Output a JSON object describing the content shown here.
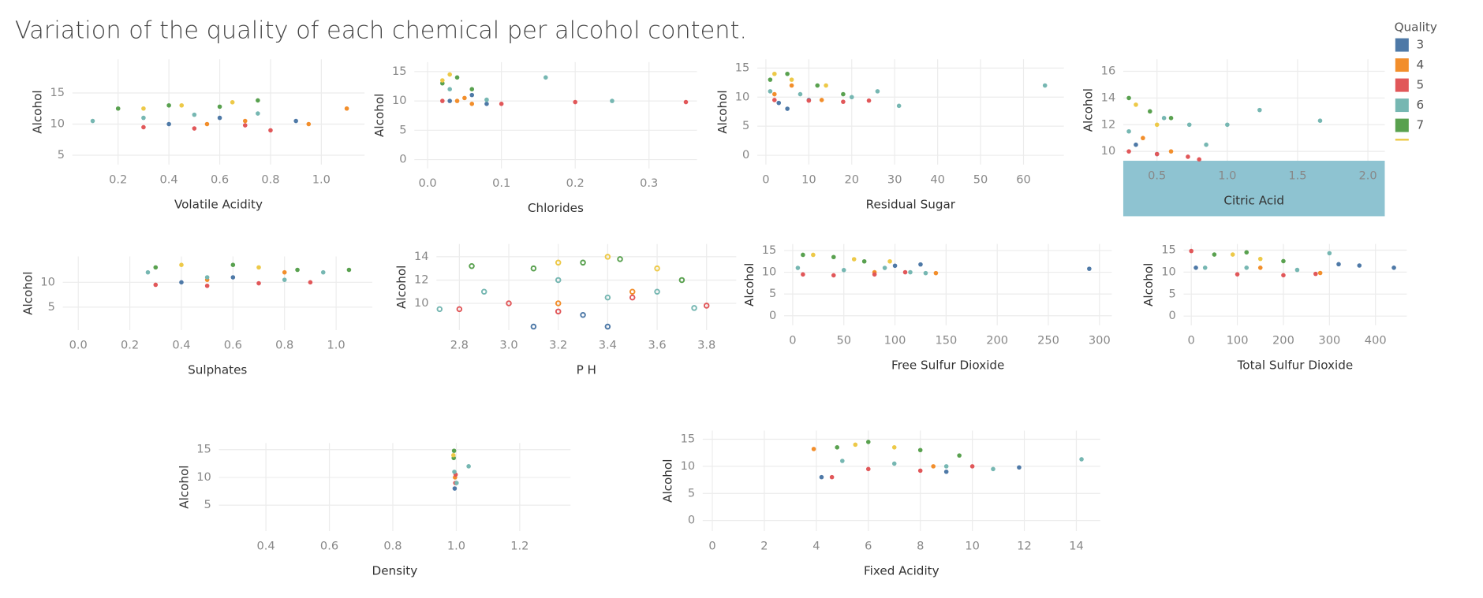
{
  "title": "Variation of the quality of each chemical per alcohol content.",
  "legend_title": "Quality",
  "chart_data": [
    {
      "type": "scatter",
      "x_label": "Volatile Acidity",
      "y_label": "Alcohol",
      "xlim": [
        0.02,
        1.17
      ],
      "ylim": [
        3.5,
        20.4
      ],
      "xticks": [
        0.2,
        0.4,
        0.6,
        0.8,
        {
          "value": 1.0,
          "label": "1.0"
        }
      ],
      "yticks": [
        5,
        10,
        15
      ],
      "series": [
        {
          "name": "3",
          "color": "#4e79a7",
          "x": [
            0.4,
            0.6,
            0.9
          ],
          "y": [
            10,
            11,
            10.5
          ]
        },
        {
          "name": "4",
          "color": "#f28e2b",
          "x": [
            0.55,
            0.7,
            0.95,
            1.1
          ],
          "y": [
            10,
            10.5,
            10,
            12.5
          ]
        },
        {
          "name": "5",
          "color": "#e15759",
          "x": [
            0.3,
            0.5,
            0.7,
            0.8
          ],
          "y": [
            9.5,
            9.3,
            9.8,
            9
          ]
        },
        {
          "name": "6",
          "color": "#76b7b2",
          "x": [
            0.1,
            0.3,
            0.5,
            0.75
          ],
          "y": [
            10.5,
            11,
            11.5,
            11.7
          ]
        },
        {
          "name": "7",
          "color": "#59a14f",
          "x": [
            0.2,
            0.4,
            0.6,
            0.75
          ],
          "y": [
            12.5,
            13,
            12.8,
            13.8
          ]
        },
        {
          "color": "#edc948",
          "x": [
            0.3,
            0.45,
            0.65
          ],
          "y": [
            12.5,
            13,
            13.5
          ]
        }
      ]
    },
    {
      "type": "scatter",
      "x_label": "Chlorides",
      "y_label": "Alcohol",
      "xlim": [
        -0.018,
        0.365
      ],
      "ylim": [
        -1.5,
        16.6
      ],
      "xticks": [
        {
          "value": 0.0,
          "label": "0.0"
        },
        0.1,
        0.2,
        0.3
      ],
      "yticks": [
        0,
        5,
        10,
        15
      ],
      "series": [
        {
          "name": "3",
          "color": "#4e79a7",
          "x": [
            0.03,
            0.06,
            0.08
          ],
          "y": [
            10,
            11,
            9.5
          ]
        },
        {
          "name": "4",
          "color": "#f28e2b",
          "x": [
            0.04,
            0.05,
            0.06
          ],
          "y": [
            10,
            10.5,
            9.5
          ]
        },
        {
          "name": "5",
          "color": "#e15759",
          "x": [
            0.02,
            0.1,
            0.2,
            0.35
          ],
          "y": [
            10,
            9.5,
            9.8,
            9.8
          ]
        },
        {
          "name": "6",
          "color": "#76b7b2",
          "x": [
            0.03,
            0.08,
            0.16,
            0.25
          ],
          "y": [
            12,
            10.2,
            14,
            10
          ]
        },
        {
          "name": "7",
          "color": "#59a14f",
          "x": [
            0.02,
            0.04,
            0.06
          ],
          "y": [
            13,
            14,
            12
          ]
        },
        {
          "color": "#edc948",
          "x": [
            0.02,
            0.03
          ],
          "y": [
            13.5,
            14.5
          ]
        }
      ]
    },
    {
      "type": "scatter",
      "x_label": "Residual Sugar",
      "y_label": "Alcohol",
      "xlim": [
        -2,
        69.4
      ],
      "ylim": [
        -1.6,
        16.5
      ],
      "xticks": [
        0,
        10,
        20,
        30,
        40,
        50,
        60
      ],
      "yticks": [
        0,
        5,
        10,
        15
      ],
      "series": [
        {
          "name": "3",
          "color": "#4e79a7",
          "x": [
            3,
            5,
            10
          ],
          "y": [
            9,
            8,
            9.5
          ]
        },
        {
          "name": "4",
          "color": "#f28e2b",
          "x": [
            2,
            6,
            13
          ],
          "y": [
            10.5,
            12,
            9.5
          ]
        },
        {
          "name": "5",
          "color": "#e15759",
          "x": [
            2,
            10,
            18,
            24
          ],
          "y": [
            9.5,
            9.4,
            9.2,
            9.4
          ]
        },
        {
          "name": "6",
          "color": "#76b7b2",
          "x": [
            1,
            8,
            20,
            26,
            31,
            65
          ],
          "y": [
            11,
            10.5,
            10,
            11,
            8.5,
            12
          ]
        },
        {
          "name": "7",
          "color": "#59a14f",
          "x": [
            1,
            5,
            12,
            18
          ],
          "y": [
            13,
            14,
            12,
            10.5
          ]
        },
        {
          "color": "#edc948",
          "x": [
            2,
            6,
            14
          ],
          "y": [
            14,
            13,
            12
          ]
        }
      ]
    },
    {
      "type": "scatter",
      "x_label": "Citric Acid",
      "y_label": "Alcohol",
      "xlim": [
        0.26,
        2.12
      ],
      "ylim": [
        9.3,
        16.9
      ],
      "xticks": [
        0.5,
        {
          "value": 1.0,
          "label": "1.0"
        },
        1.5,
        {
          "value": 2.0,
          "label": "2.0"
        }
      ],
      "yticks": [
        10,
        12,
        14,
        16
      ],
      "series": [
        {
          "name": "3",
          "color": "#4e79a7",
          "x": [
            0.35,
            0.5
          ],
          "y": [
            10.5,
            9.8
          ]
        },
        {
          "name": "4",
          "color": "#f28e2b",
          "x": [
            0.4,
            0.6
          ],
          "y": [
            11,
            10
          ]
        },
        {
          "name": "5",
          "color": "#e15759",
          "x": [
            0.3,
            0.5,
            0.72,
            0.8
          ],
          "y": [
            10,
            9.8,
            9.6,
            9.4
          ]
        },
        {
          "name": "6",
          "color": "#76b7b2",
          "x": [
            0.3,
            0.55,
            0.73,
            0.85,
            1.0,
            1.23,
            1.66
          ],
          "y": [
            11.5,
            12.5,
            12,
            10.5,
            12,
            13.1,
            12.3
          ]
        },
        {
          "name": "7",
          "color": "#59a14f",
          "x": [
            0.3,
            0.45,
            0.6
          ],
          "y": [
            14,
            13,
            12.5
          ]
        },
        {
          "color": "#edc948",
          "x": [
            0.35,
            0.5
          ],
          "y": [
            13.5,
            12
          ]
        }
      ]
    },
    {
      "type": "scatter",
      "x_label": "Sulphates",
      "y_label": "Alcohol",
      "xlim": [
        -0.06,
        1.14
      ],
      "ylim": [
        0.4,
        15.2
      ],
      "xticks": [
        {
          "value": 0.0,
          "label": "0.0"
        },
        0.2,
        0.4,
        0.6,
        0.8,
        {
          "value": 1.0,
          "label": "1.0"
        }
      ],
      "yticks": [
        5,
        10
      ],
      "series": [
        {
          "name": "3",
          "color": "#4e79a7",
          "x": [
            0.4,
            0.6
          ],
          "y": [
            10,
            11
          ]
        },
        {
          "name": "4",
          "color": "#f28e2b",
          "x": [
            0.5,
            0.8
          ],
          "y": [
            10.5,
            12
          ]
        },
        {
          "name": "5",
          "color": "#e15759",
          "x": [
            0.3,
            0.5,
            0.7,
            0.9
          ],
          "y": [
            9.5,
            9.3,
            9.8,
            10
          ]
        },
        {
          "name": "6",
          "color": "#76b7b2",
          "x": [
            0.27,
            0.5,
            0.8,
            0.95
          ],
          "y": [
            12,
            11,
            10.5,
            12
          ]
        },
        {
          "name": "7",
          "color": "#59a14f",
          "x": [
            0.3,
            0.6,
            0.85,
            1.05
          ],
          "y": [
            13,
            13.5,
            12.5,
            12.5
          ]
        },
        {
          "color": "#edc948",
          "x": [
            0.4,
            0.7
          ],
          "y": [
            13.5,
            13
          ]
        }
      ]
    },
    {
      "type": "scatter",
      "marker": "hollow",
      "x_label": "P H",
      "y_label": "Alcohol",
      "xlim": [
        2.707,
        3.92
      ],
      "ylim": [
        7.7,
        15.1
      ],
      "xticks": [
        2.8,
        {
          "value": 3.0,
          "label": "3.0"
        },
        3.2,
        3.4,
        3.6,
        3.8
      ],
      "yticks": [
        10,
        12,
        14
      ],
      "series": [
        {
          "name": "3",
          "color": "#4e79a7",
          "x": [
            3.1,
            3.3,
            3.4
          ],
          "y": [
            8,
            9,
            8
          ]
        },
        {
          "name": "4",
          "color": "#f28e2b",
          "x": [
            3.2,
            3.5
          ],
          "y": [
            10,
            11
          ]
        },
        {
          "name": "5",
          "color": "#e15759",
          "x": [
            2.8,
            3.0,
            3.2,
            3.5,
            3.8
          ],
          "y": [
            9.5,
            10,
            9.3,
            10.5,
            9.8
          ]
        },
        {
          "name": "6",
          "color": "#76b7b2",
          "x": [
            2.72,
            2.9,
            3.2,
            3.4,
            3.6,
            3.75
          ],
          "y": [
            9.5,
            11,
            12,
            10.5,
            11,
            9.6
          ]
        },
        {
          "name": "7",
          "color": "#59a14f",
          "x": [
            2.85,
            3.1,
            3.3,
            3.45,
            3.7
          ],
          "y": [
            13.2,
            13,
            13.5,
            13.8,
            12
          ]
        },
        {
          "color": "#edc948",
          "x": [
            3.2,
            3.4,
            3.6
          ],
          "y": [
            13.5,
            14,
            13
          ]
        }
      ]
    },
    {
      "type": "scatter",
      "x_label": "Free Sulfur Dioxide",
      "y_label": "Alcohol",
      "xlim": [
        -8.4,
        312
      ],
      "ylim": [
        -2.2,
        16.5
      ],
      "xticks": [
        0,
        50,
        100,
        150,
        200,
        250,
        300
      ],
      "yticks": [
        0,
        5,
        10,
        15
      ],
      "series": [
        {
          "name": "3",
          "color": "#4e79a7",
          "x": [
            100,
            125,
            290
          ],
          "y": [
            11.5,
            11.8,
            10.8
          ]
        },
        {
          "name": "4",
          "color": "#f28e2b",
          "x": [
            80,
            140
          ],
          "y": [
            10,
            9.8
          ]
        },
        {
          "name": "5",
          "color": "#e15759",
          "x": [
            10,
            40,
            80,
            110
          ],
          "y": [
            9.5,
            9.3,
            9.5,
            10
          ]
        },
        {
          "name": "6",
          "color": "#76b7b2",
          "x": [
            5,
            50,
            90,
            115,
            130
          ],
          "y": [
            11,
            10.5,
            11,
            10,
            9.8
          ]
        },
        {
          "name": "7",
          "color": "#59a14f",
          "x": [
            10,
            40,
            70
          ],
          "y": [
            14,
            13.5,
            12.5
          ]
        },
        {
          "color": "#edc948",
          "x": [
            20,
            60,
            95
          ],
          "y": [
            14,
            13,
            12.5
          ]
        }
      ]
    },
    {
      "type": "scatter",
      "x_label": "Total Sulfur Dioxide",
      "y_label": "Alcohol",
      "xlim": [
        -16.7,
        468
      ],
      "ylim": [
        -2.1,
        16.4
      ],
      "xticks": [
        0,
        100,
        200,
        300,
        400
      ],
      "yticks": [
        0,
        5,
        10,
        15
      ],
      "series": [
        {
          "name": "3",
          "color": "#4e79a7",
          "x": [
            10,
            320,
            365,
            440
          ],
          "y": [
            11,
            11.8,
            11.5,
            11
          ]
        },
        {
          "name": "4",
          "color": "#f28e2b",
          "x": [
            150,
            280
          ],
          "y": [
            11,
            9.8
          ]
        },
        {
          "name": "5",
          "color": "#e15759",
          "x": [
            0,
            100,
            200,
            270
          ],
          "y": [
            14.8,
            9.5,
            9.3,
            9.6
          ]
        },
        {
          "name": "6",
          "color": "#76b7b2",
          "x": [
            30,
            120,
            230,
            300
          ],
          "y": [
            11,
            11,
            10.5,
            14.3
          ]
        },
        {
          "name": "7",
          "color": "#59a14f",
          "x": [
            50,
            120,
            200
          ],
          "y": [
            14,
            14.5,
            12.5
          ]
        },
        {
          "color": "#edc948",
          "x": [
            90,
            150
          ],
          "y": [
            14,
            13
          ]
        }
      ]
    },
    {
      "type": "scatter",
      "x_label": "Density",
      "y_label": "Alcohol",
      "xlim": [
        0.252,
        1.36
      ],
      "ylim": [
        0.34,
        16.2
      ],
      "xticks": [
        0.4,
        0.6,
        0.8,
        {
          "value": 1.0,
          "label": "1.0"
        },
        1.2
      ],
      "yticks": [
        5,
        10,
        15
      ],
      "series": [
        {
          "name": "3",
          "color": "#4e79a7",
          "x": [
            0.995
          ],
          "y": [
            8
          ]
        },
        {
          "name": "4",
          "color": "#f28e2b",
          "x": [
            0.996
          ],
          "y": [
            10
          ]
        },
        {
          "name": "5",
          "color": "#e15759",
          "x": [
            0.997,
            0.998
          ],
          "y": [
            9,
            10.5
          ]
        },
        {
          "name": "6",
          "color": "#76b7b2",
          "x": [
            0.994,
            1.001,
            1.039
          ],
          "y": [
            11,
            9,
            12
          ]
        },
        {
          "name": "7",
          "color": "#59a14f",
          "x": [
            0.992,
            0.993
          ],
          "y": [
            13.5,
            14.8
          ]
        },
        {
          "color": "#edc948",
          "x": [
            0.991
          ],
          "y": [
            14
          ]
        }
      ]
    },
    {
      "type": "scatter",
      "x_label": "Fixed Acidity",
      "y_label": "Alcohol",
      "xlim": [
        -0.37,
        14.92
      ],
      "ylim": [
        -1.94,
        16.6
      ],
      "xticks": [
        0,
        2,
        4,
        6,
        8,
        10,
        12,
        14
      ],
      "yticks": [
        0,
        5,
        10,
        15
      ],
      "series": [
        {
          "name": "3",
          "color": "#4e79a7",
          "x": [
            4.2,
            9,
            11.8
          ],
          "y": [
            8,
            9,
            9.8
          ]
        },
        {
          "name": "4",
          "color": "#f28e2b",
          "x": [
            3.9,
            8.5
          ],
          "y": [
            13.2,
            10
          ]
        },
        {
          "name": "5",
          "color": "#e15759",
          "x": [
            4.6,
            6,
            8,
            10
          ],
          "y": [
            8,
            9.5,
            9.2,
            10
          ]
        },
        {
          "name": "6",
          "color": "#76b7b2",
          "x": [
            5,
            7,
            9,
            10.8,
            14.2
          ],
          "y": [
            11,
            10.5,
            10,
            9.5,
            11.3
          ]
        },
        {
          "name": "7",
          "color": "#59a14f",
          "x": [
            4.8,
            6,
            8,
            9.5
          ],
          "y": [
            13.5,
            14.5,
            13,
            12
          ]
        },
        {
          "color": "#edc948",
          "x": [
            5.5,
            7
          ],
          "y": [
            14,
            13.5
          ]
        }
      ]
    }
  ]
}
